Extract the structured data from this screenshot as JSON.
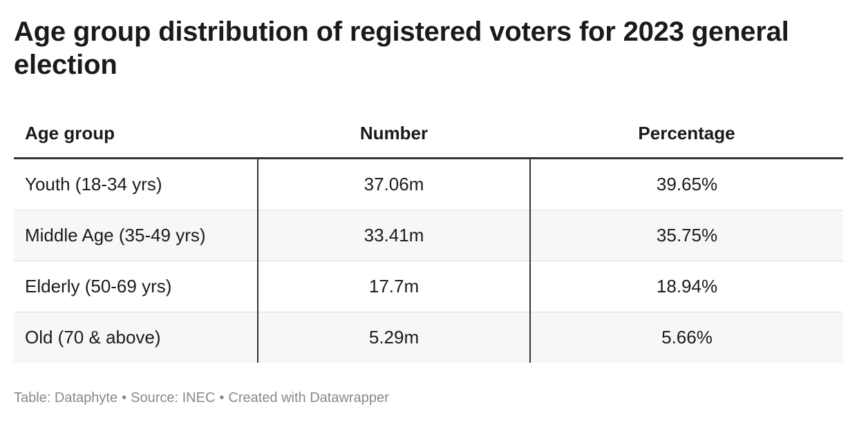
{
  "title": "Age group distribution of registered voters for 2023 general election",
  "chart_data": {
    "type": "table",
    "title": "Age group distribution of registered voters for 2023 general election",
    "columns": [
      "Age group",
      "Number",
      "Percentage"
    ],
    "rows": [
      {
        "age_group": "Youth (18-34 yrs)",
        "number": "37.06m",
        "percentage": "39.65%"
      },
      {
        "age_group": "Middle Age (35-49 yrs)",
        "number": "33.41m",
        "percentage": "35.75%"
      },
      {
        "age_group": "Elderly (50-69 yrs)",
        "number": "17.7m",
        "percentage": "18.94%"
      },
      {
        "age_group": "Old (70 & above)",
        "number": "5.29m",
        "percentage": "5.66%"
      }
    ]
  },
  "footer": {
    "table_by": "Table: Dataphyte",
    "source": "Source: INEC",
    "created_with": "Created with Datawrapper",
    "separator": "•"
  }
}
